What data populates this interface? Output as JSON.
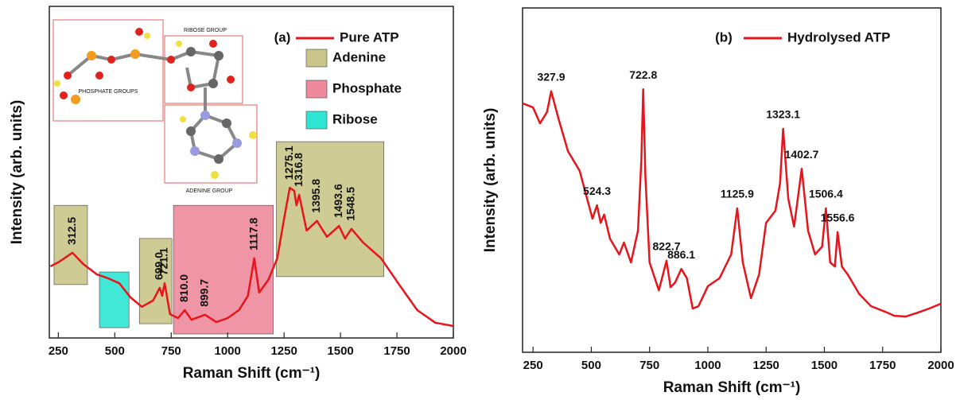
{
  "chart_data": [
    {
      "type": "line",
      "panel_label": "(a)",
      "x_label": "Raman Shift (cm⁻¹)",
      "y_label": "Intensity (arb. units)",
      "xlim": [
        210,
        2000
      ],
      "ylim": [
        0,
        100
      ],
      "xticks": [
        250,
        500,
        750,
        1000,
        1250,
        1500,
        1750,
        2000
      ],
      "x": [
        215,
        250,
        312.5,
        360,
        420,
        470,
        520,
        570,
        620,
        670,
        699,
        710,
        721.1,
        745,
        780,
        810,
        840,
        899.7,
        950,
        1000,
        1050,
        1090,
        1117.8,
        1140,
        1180,
        1220,
        1250,
        1275.1,
        1295,
        1305,
        1316.8,
        1350,
        1395.8,
        1440,
        1493.6,
        1520,
        1548.5,
        1600,
        1680,
        1760,
        1840,
        1920,
        2000
      ],
      "series": [
        {
          "name": "Pure ATP",
          "color": "#e8141b",
          "values": [
            21.6,
            22.8,
            25.7,
            22.3,
            19.2,
            18.0,
            16.5,
            12.2,
            9.4,
            11.3,
            15.1,
            12.7,
            16.5,
            7.2,
            6.0,
            8.4,
            5.5,
            7.0,
            4.8,
            6.0,
            8.4,
            12.7,
            24.0,
            13.7,
            17.5,
            24.0,
            36.0,
            45.3,
            44.4,
            40.0,
            43.2,
            32.4,
            35.3,
            30.5,
            33.8,
            30.0,
            32.9,
            28.8,
            24.0,
            16.1,
            8.4,
            4.6,
            3.6
          ]
        }
      ],
      "regions": [
        {
          "name": "Adenine",
          "color": "#c9c58a",
          "spans": [
            {
              "x": [
                231,
                379
              ],
              "y": [
                16.1,
                40.0
              ]
            },
            {
              "x": [
                609,
                753
              ],
              "y": [
                4.3,
                30.0
              ]
            },
            {
              "x": [
                1216,
                1692
              ],
              "y": [
                18.5,
                59.2
              ]
            }
          ]
        },
        {
          "name": "Phosphate",
          "color": "#ee8a9b",
          "spans": [
            {
              "x": [
                760,
                1202
              ],
              "y": [
                1.2,
                40.0
              ]
            }
          ]
        },
        {
          "name": "Ribose",
          "color": "#2ee6d3",
          "spans": [
            {
              "x": [
                432,
                563
              ],
              "y": [
                3.1,
                19.9
              ]
            }
          ]
        }
      ],
      "peaks": [
        312.5,
        {
          "value": 699.0,
          "label": "699.0"
        },
        721.1,
        {
          "value": 810.0,
          "label": "810.0"
        },
        899.7,
        1117.8,
        1275.1,
        1316.8,
        1395.8,
        1493.6,
        1548.5
      ],
      "inset_labels": [
        "PHOSPHATE GROUPS",
        "RIBOSE GROUP",
        "ADENINE GROUP"
      ]
    },
    {
      "type": "line",
      "panel_label": "(b)",
      "x_label": "Raman Shift (cm⁻¹)",
      "y_label": "Intensity (arb. units)",
      "xlim": [
        205,
        2000
      ],
      "ylim": [
        0,
        100
      ],
      "xticks": [
        250,
        500,
        750,
        1000,
        1250,
        1500,
        1750,
        2000
      ],
      "x": [
        205,
        250,
        280,
        310,
        327.9,
        360,
        400,
        450,
        505,
        524.3,
        540,
        555,
        580,
        620,
        640,
        670,
        700,
        715,
        722.8,
        732,
        750,
        790,
        822.7,
        840,
        860,
        886.1,
        910,
        935,
        960,
        1000,
        1050,
        1100,
        1125.9,
        1150,
        1185,
        1220,
        1250,
        1290,
        1310,
        1323.1,
        1345,
        1370,
        1402.7,
        1430,
        1460,
        1490,
        1506.4,
        1525,
        1545,
        1556.6,
        1575,
        1600,
        1650,
        1700,
        1760,
        1800,
        1850,
        1900,
        1950,
        2000
      ],
      "series": [
        {
          "name": "Hydrolysed ATP",
          "color": "#e8141b",
          "values": [
            72.3,
            71.1,
            66.5,
            69.8,
            75.8,
            67.7,
            58.4,
            52.7,
            38.8,
            42.7,
            37.6,
            40.0,
            33.0,
            28.4,
            31.9,
            26.1,
            35.3,
            56.1,
            76.4,
            51.3,
            26.1,
            18.0,
            26.6,
            18.9,
            20.3,
            24.2,
            21.5,
            12.7,
            13.4,
            19.2,
            21.5,
            28.4,
            41.8,
            26.1,
            15.7,
            22.6,
            37.6,
            41.1,
            49.2,
            64.9,
            44.6,
            36.5,
            53.3,
            35.3,
            28.4,
            30.7,
            41.8,
            26.1,
            24.9,
            34.9,
            24.9,
            22.6,
            16.9,
            13.4,
            11.8,
            10.6,
            10.4,
            11.5,
            12.7,
            14.1
          ]
        }
      ],
      "peaks": [
        327.9,
        524.3,
        722.8,
        822.7,
        886.1,
        1125.9,
        1323.1,
        1402.7,
        1506.4,
        1556.6
      ]
    }
  ]
}
